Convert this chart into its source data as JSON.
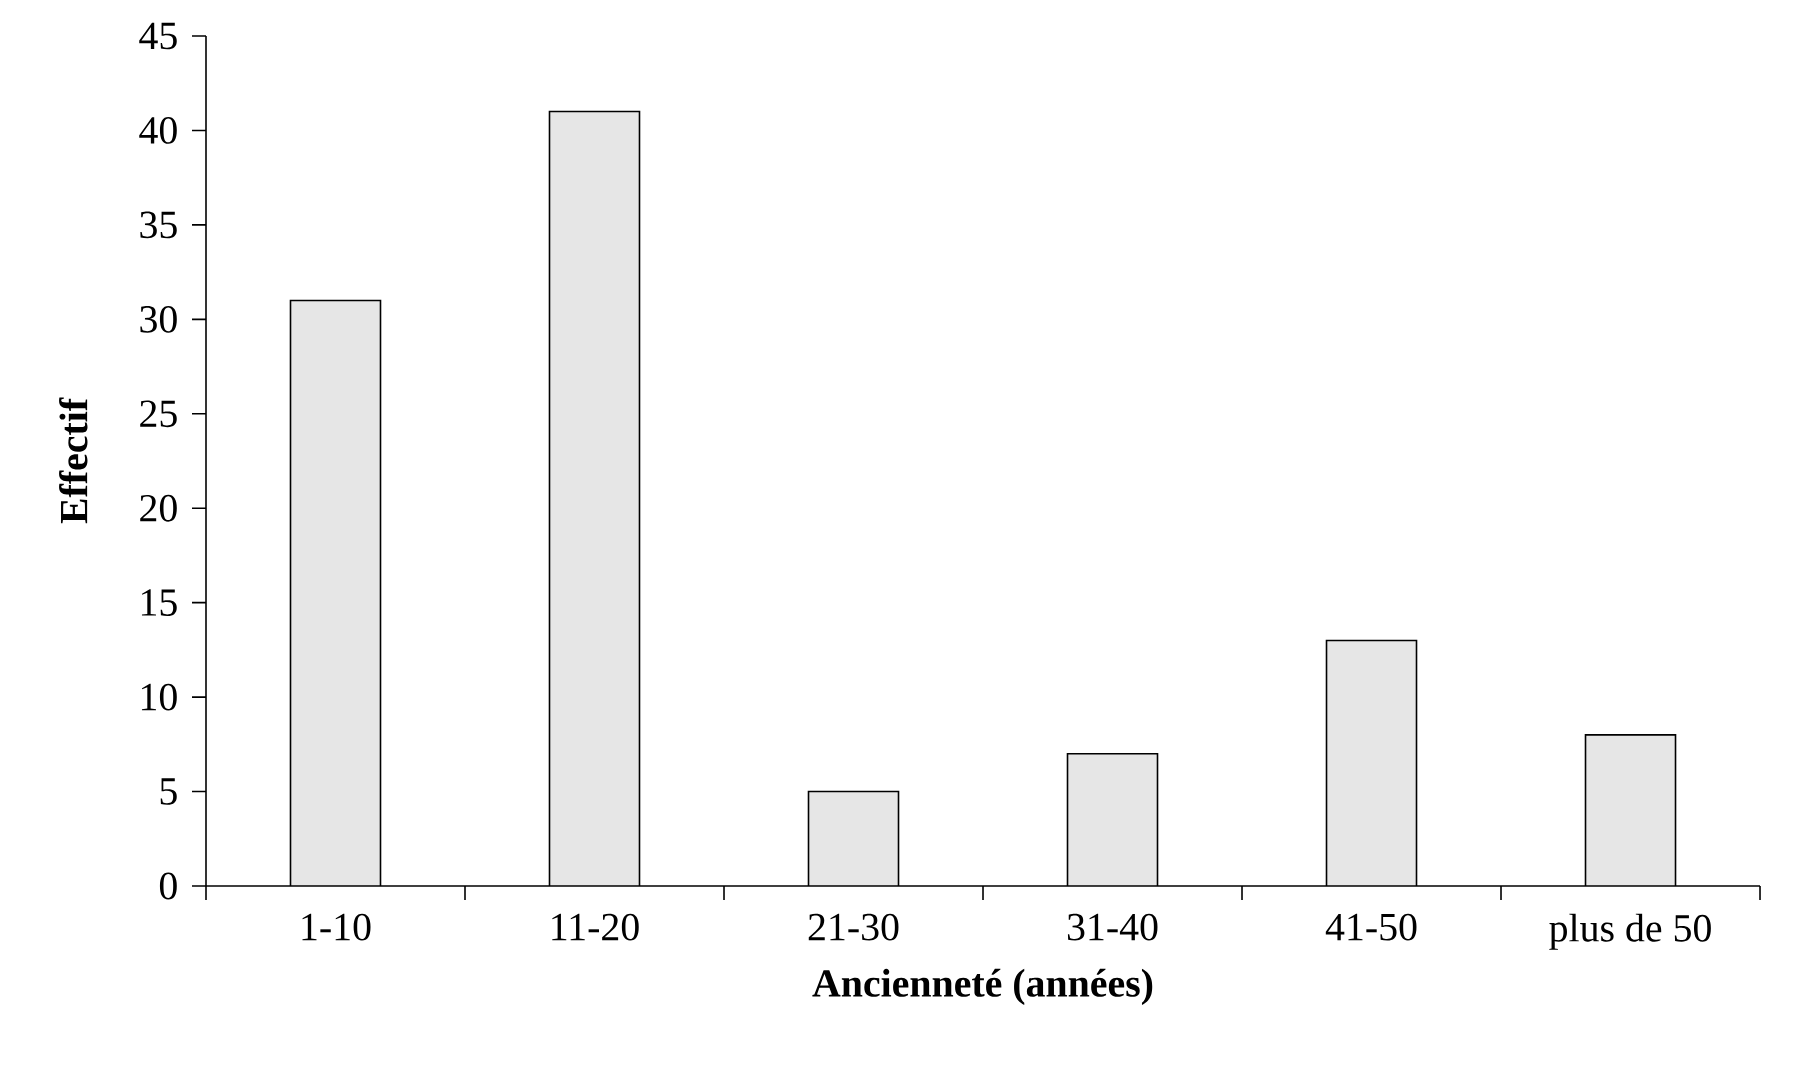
{
  "chart_data": {
    "type": "bar",
    "xlabel": "Ancienneté (années)",
    "ylabel": "Effectif",
    "categories": [
      "1-10",
      "11-20",
      "21-30",
      "31-40",
      "41-50",
      "plus de 50"
    ],
    "values": [
      31,
      41,
      5,
      7,
      13,
      8
    ],
    "color": "#e6e6e6",
    "ylim": [
      0,
      45
    ],
    "yticks": [
      0,
      5,
      10,
      15,
      20,
      25,
      30,
      35,
      40,
      45
    ]
  }
}
